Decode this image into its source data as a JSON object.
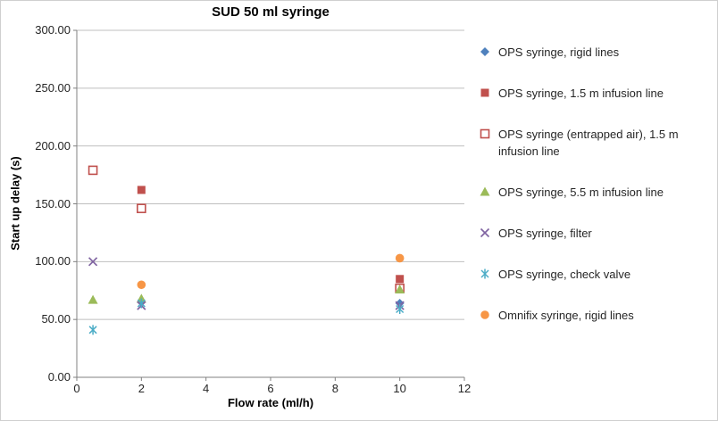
{
  "chart_data": {
    "type": "scatter",
    "title": "SUD 50 ml syringe",
    "xlabel": "Flow rate (ml/h)",
    "ylabel": "Start up delay (s)",
    "xlim": [
      0,
      12
    ],
    "ylim": [
      0,
      300
    ],
    "xticks": [
      "0",
      "2",
      "4",
      "6",
      "8",
      "10",
      "12"
    ],
    "yticks": [
      "0.00",
      "50.00",
      "100.00",
      "150.00",
      "200.00",
      "250.00",
      "300.00"
    ],
    "grid": "horizontal",
    "legend_position": "right",
    "colors": {
      "blue": "#4F81BD",
      "red": "#C0504D",
      "green": "#9BBB59",
      "purple": "#8064A2",
      "cyan": "#4BACC6",
      "orange": "#F79646",
      "gridline": "#BFBFBF",
      "axis": "#808080"
    },
    "series": [
      {
        "name": "OPS syringe, rigid lines",
        "marker": "diamond",
        "color": "#4F81BD",
        "points": [
          {
            "x": 2,
            "y": 65
          },
          {
            "x": 10,
            "y": 64
          }
        ]
      },
      {
        "name": "OPS syringe, 1.5 m infusion line",
        "marker": "square",
        "color": "#C0504D",
        "points": [
          {
            "x": 2,
            "y": 162
          },
          {
            "x": 10,
            "y": 85
          }
        ]
      },
      {
        "name": "OPS syringe (entrapped air), 1.5 m infusion line",
        "marker": "square-open",
        "color": "#C0504D",
        "points": [
          {
            "x": 0.5,
            "y": 179
          },
          {
            "x": 2,
            "y": 146
          },
          {
            "x": 10,
            "y": 77
          }
        ]
      },
      {
        "name": "OPS syringe, 5.5 m infusion line",
        "marker": "triangle",
        "color": "#9BBB59",
        "points": [
          {
            "x": 0.5,
            "y": 67
          },
          {
            "x": 2,
            "y": 68
          },
          {
            "x": 10,
            "y": 76
          }
        ]
      },
      {
        "name": "OPS syringe, filter",
        "marker": "x",
        "color": "#8064A2",
        "points": [
          {
            "x": 0.5,
            "y": 100
          },
          {
            "x": 2,
            "y": 62
          },
          {
            "x": 10,
            "y": 62
          }
        ]
      },
      {
        "name": "OPS syringe, check valve",
        "marker": "asterisk",
        "color": "#4BACC6",
        "points": [
          {
            "x": 0.5,
            "y": 41
          },
          {
            "x": 2,
            "y": 64
          },
          {
            "x": 10,
            "y": 59
          }
        ]
      },
      {
        "name": "Omnifix syringe, rigid lines",
        "marker": "circle",
        "color": "#F79646",
        "points": [
          {
            "x": 2,
            "y": 80
          },
          {
            "x": 10,
            "y": 103
          }
        ]
      }
    ]
  }
}
